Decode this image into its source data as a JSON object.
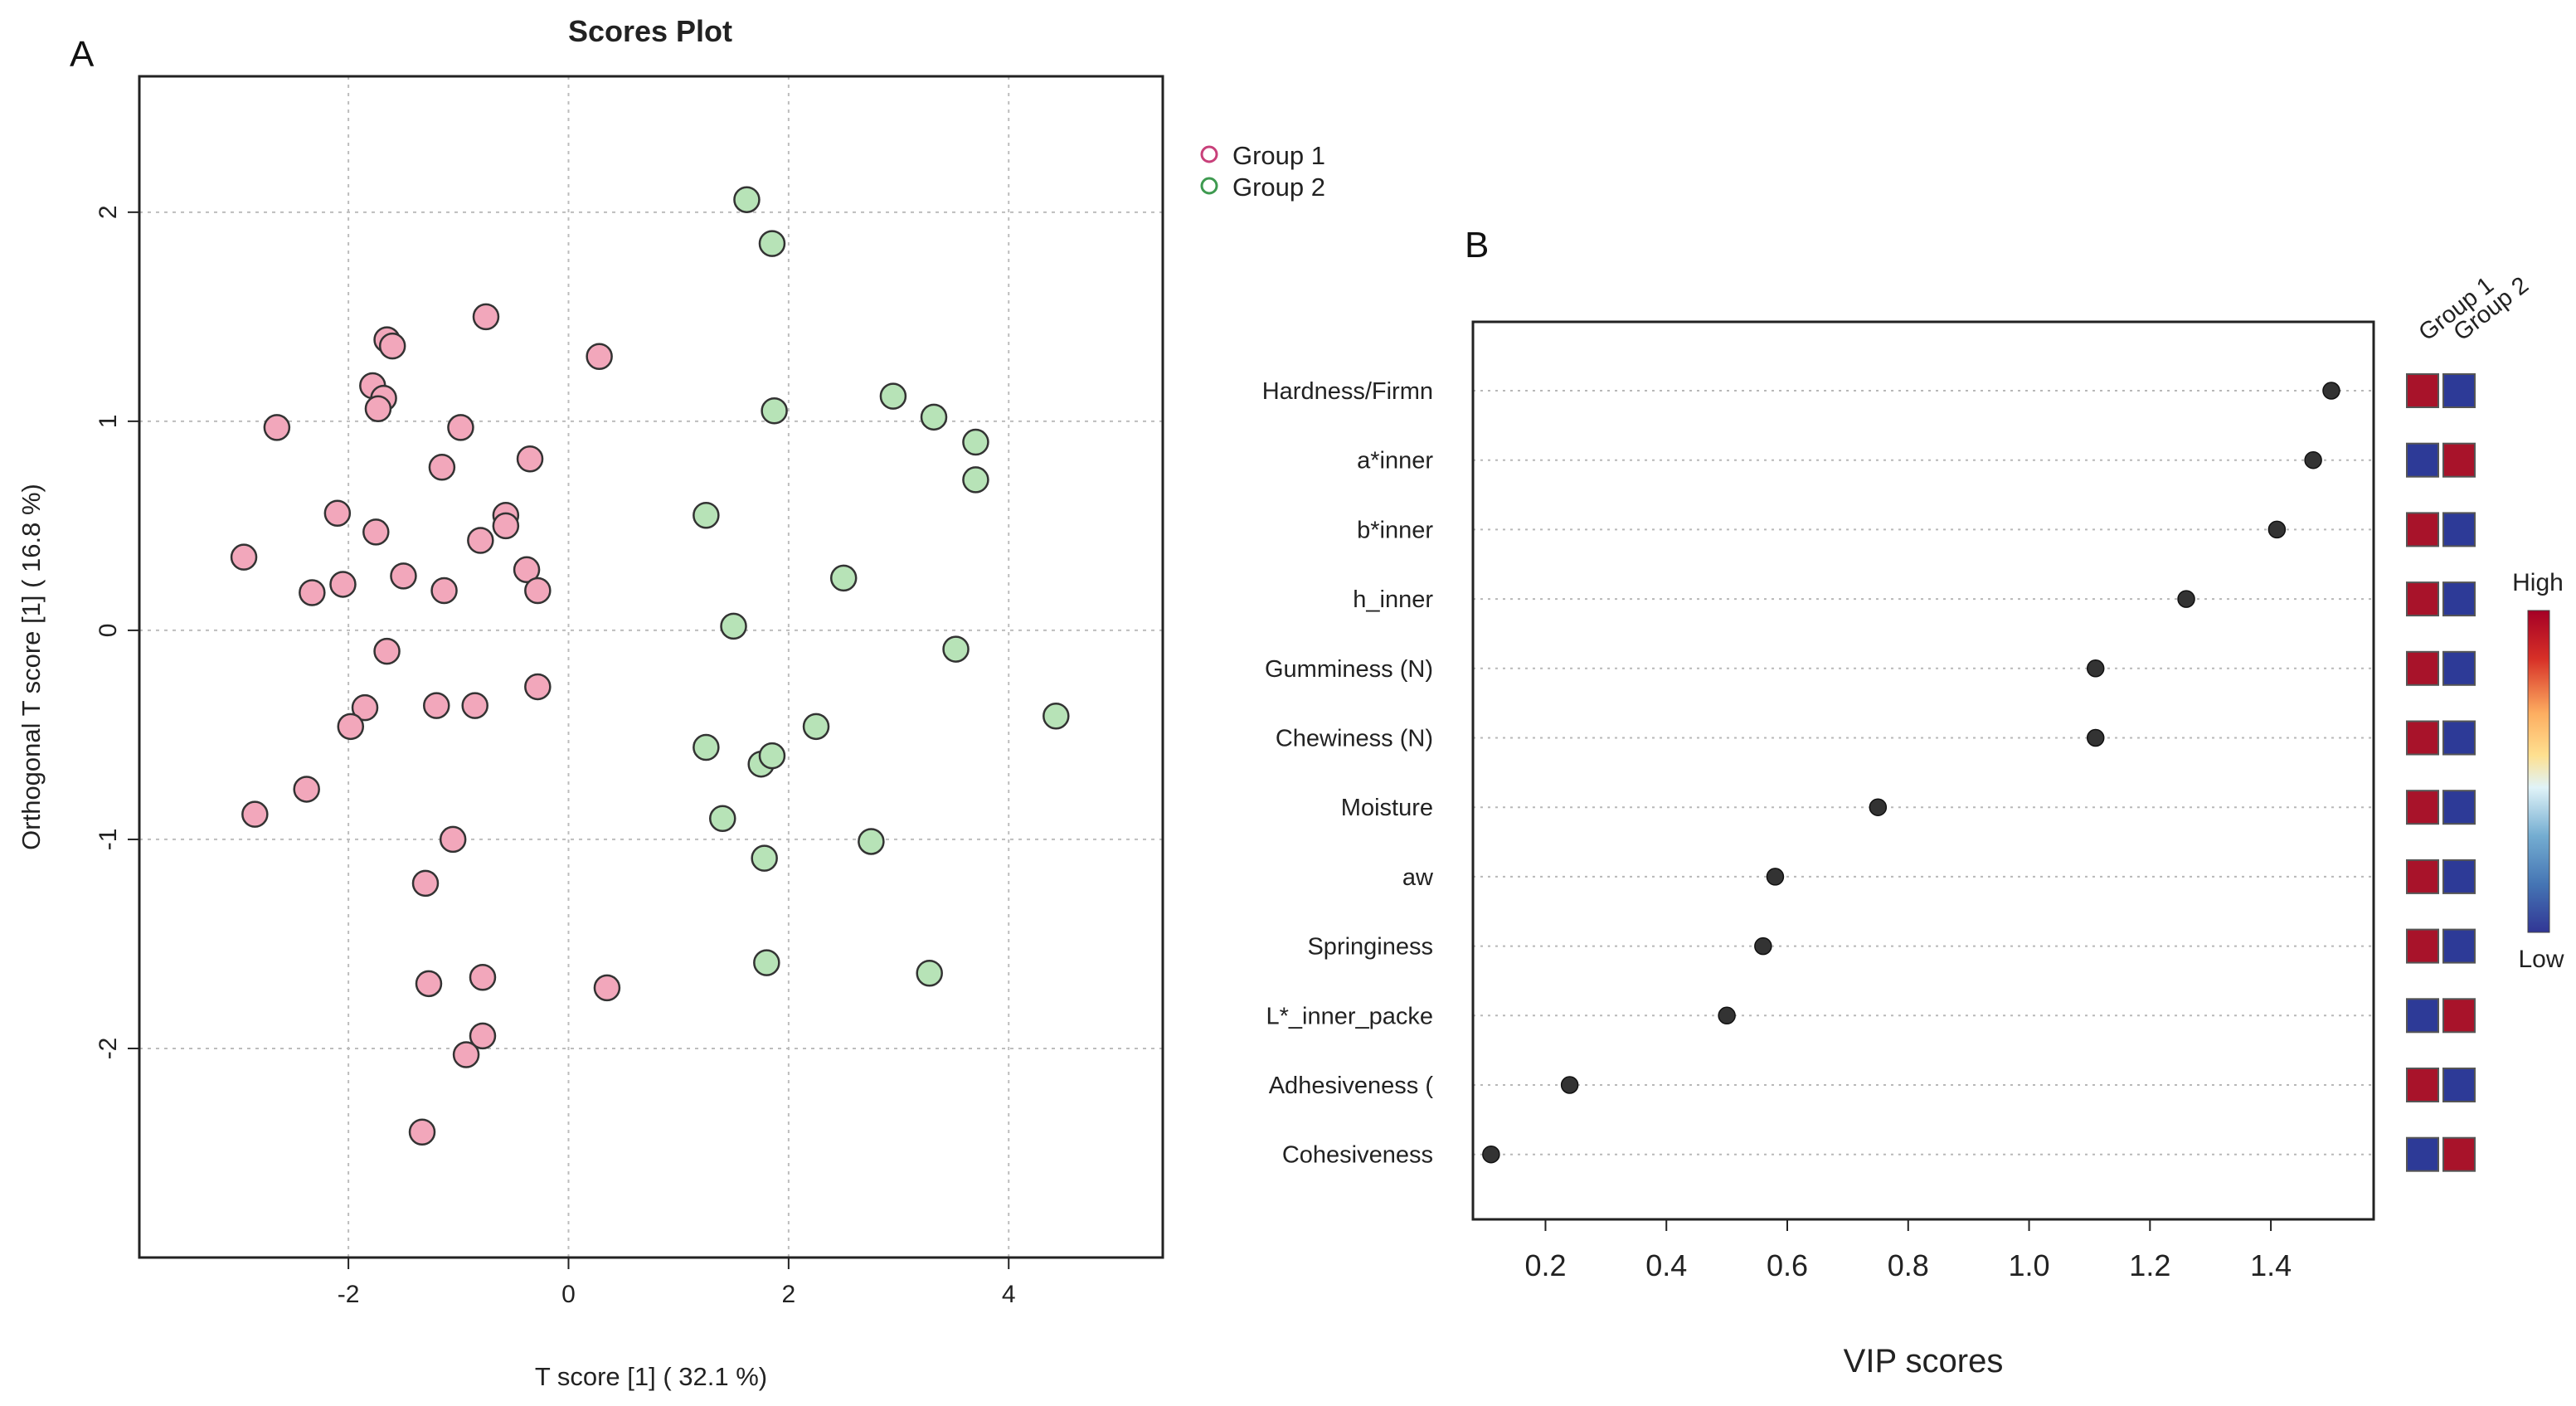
{
  "panel_labels": {
    "a": "A",
    "b": "B"
  },
  "chart_data": [
    {
      "type": "scatter",
      "title": "Scores Plot",
      "xlabel": "T score [1] ( 32.1 %)",
      "ylabel": "Orthogonal T score [1] ( 16.8 %)",
      "xlim": [
        -3.9,
        5.4
      ],
      "ylim": [
        -3.0,
        2.65
      ],
      "xticks": [
        "-2",
        "0",
        "2",
        "4"
      ],
      "xtick_values": [
        -2,
        0,
        2,
        4
      ],
      "yticks": [
        "-2",
        "-1",
        "0",
        "1",
        "2"
      ],
      "ytick_values": [
        -2,
        -1,
        0,
        1,
        2
      ],
      "grid": true,
      "legend_position": "top-right outside",
      "series": [
        {
          "name": "Group 1",
          "fill": "#f2a7bb",
          "stroke": "#c8407a",
          "points": [
            [
              -1.65,
              1.39
            ],
            [
              -1.6,
              1.36
            ],
            [
              -0.75,
              1.5
            ],
            [
              0.28,
              1.31
            ],
            [
              -1.78,
              1.17
            ],
            [
              -1.68,
              1.11
            ],
            [
              -1.73,
              1.06
            ],
            [
              -2.65,
              0.97
            ],
            [
              -0.98,
              0.97
            ],
            [
              -1.15,
              0.78
            ],
            [
              -0.35,
              0.82
            ],
            [
              -2.1,
              0.56
            ],
            [
              -1.75,
              0.47
            ],
            [
              -0.57,
              0.55
            ],
            [
              -0.57,
              0.5
            ],
            [
              -0.8,
              0.43
            ],
            [
              -2.95,
              0.35
            ],
            [
              -1.5,
              0.26
            ],
            [
              -2.05,
              0.22
            ],
            [
              -2.33,
              0.18
            ],
            [
              -1.13,
              0.19
            ],
            [
              -0.38,
              0.29
            ],
            [
              -0.28,
              0.19
            ],
            [
              -1.65,
              -0.1
            ],
            [
              -1.85,
              -0.37
            ],
            [
              -1.2,
              -0.36
            ],
            [
              -0.85,
              -0.36
            ],
            [
              -0.28,
              -0.27
            ],
            [
              -1.98,
              -0.46
            ],
            [
              -2.38,
              -0.76
            ],
            [
              -2.85,
              -0.88
            ],
            [
              -1.05,
              -1.0
            ],
            [
              -1.3,
              -1.21
            ],
            [
              -1.27,
              -1.69
            ],
            [
              -0.78,
              -1.66
            ],
            [
              0.35,
              -1.71
            ],
            [
              -0.78,
              -1.94
            ],
            [
              -0.93,
              -2.03
            ],
            [
              -1.33,
              -2.4
            ]
          ]
        },
        {
          "name": "Group 2",
          "fill": "#b7e3b7",
          "stroke": "#3e9a50",
          "points": [
            [
              1.62,
              2.06
            ],
            [
              1.85,
              1.85
            ],
            [
              1.87,
              1.05
            ],
            [
              2.95,
              1.12
            ],
            [
              3.32,
              1.02
            ],
            [
              3.7,
              0.9
            ],
            [
              3.7,
              0.72
            ],
            [
              1.25,
              0.55
            ],
            [
              2.5,
              0.25
            ],
            [
              1.5,
              0.02
            ],
            [
              3.52,
              -0.09
            ],
            [
              4.43,
              -0.41
            ],
            [
              2.25,
              -0.46
            ],
            [
              1.25,
              -0.56
            ],
            [
              1.75,
              -0.64
            ],
            [
              1.85,
              -0.6
            ],
            [
              1.4,
              -0.9
            ],
            [
              2.75,
              -1.01
            ],
            [
              1.78,
              -1.09
            ],
            [
              1.8,
              -1.59
            ],
            [
              3.28,
              -1.64
            ]
          ]
        }
      ]
    },
    {
      "type": "scatter",
      "title": "",
      "xlabel": "VIP scores",
      "ylabel": "",
      "xlim": [
        0.08,
        1.57
      ],
      "xticks": [
        "0.2",
        "0.4",
        "0.6",
        "0.8",
        "1.0",
        "1.2",
        "1.4"
      ],
      "xtick_values": [
        0.2,
        0.4,
        0.6,
        0.8,
        1.0,
        1.2,
        1.4
      ],
      "grid": "horizontal dotted",
      "features": [
        "Hardness/Firmn",
        "a*inner",
        "b*inner",
        "h_inner",
        "Gumminess (N)",
        "Chewiness (N)",
        "Moisture",
        "aw",
        "Springiness",
        "L*_inner_packe",
        "Adhesiveness (",
        "Cohesiveness"
      ],
      "values": [
        1.5,
        1.47,
        1.41,
        1.26,
        1.11,
        1.11,
        0.75,
        0.58,
        0.56,
        0.5,
        0.24,
        0.11
      ],
      "heatmap": {
        "columns": [
          "Group 1",
          "Group 2"
        ],
        "cells": [
          [
            "high",
            "low"
          ],
          [
            "low",
            "high"
          ],
          [
            "high",
            "low"
          ],
          [
            "high",
            "low"
          ],
          [
            "high",
            "low"
          ],
          [
            "high",
            "low"
          ],
          [
            "high",
            "low"
          ],
          [
            "high",
            "low"
          ],
          [
            "high",
            "low"
          ],
          [
            "low",
            "high"
          ],
          [
            "high",
            "low"
          ],
          [
            "low",
            "high"
          ]
        ],
        "high_color": "#a8132a",
        "low_color": "#2d3a97"
      },
      "colorbar": {
        "high_label": "High",
        "low_label": "Low"
      }
    }
  ]
}
